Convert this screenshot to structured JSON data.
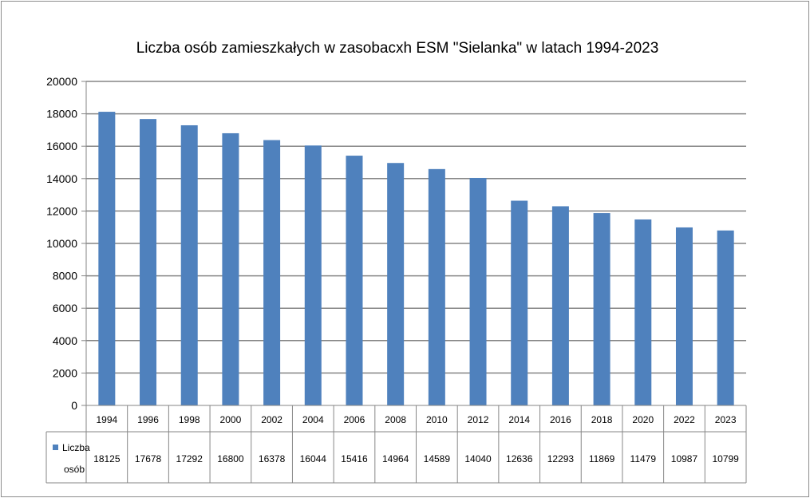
{
  "chart_data": {
    "type": "bar",
    "title": "Liczba  osób zamieszkałych w zasobacxh ESM \"Sielanka\" w latach 1994-2023",
    "categories": [
      "1994",
      "1996",
      "1998",
      "2000",
      "2002",
      "2004",
      "2006",
      "2008",
      "2010",
      "2012",
      "2014",
      "2016",
      "2018",
      "2020",
      "2022",
      "2023"
    ],
    "series": [
      {
        "name": "Liczba osób",
        "name_lines": [
          "Liczba",
          "osób"
        ],
        "values": [
          18125,
          17678,
          17292,
          16800,
          16378,
          16044,
          15416,
          14964,
          14589,
          14040,
          12636,
          12293,
          11869,
          11479,
          10987,
          10799
        ],
        "color": "#4f81bd"
      }
    ],
    "yticks": [
      "0",
      "2000",
      "4000",
      "6000",
      "8000",
      "10000",
      "12000",
      "14000",
      "16000",
      "18000",
      "20000"
    ],
    "ylim": [
      0,
      20000
    ],
    "grid": true,
    "data_table": true,
    "xlabel": "",
    "ylabel": ""
  }
}
